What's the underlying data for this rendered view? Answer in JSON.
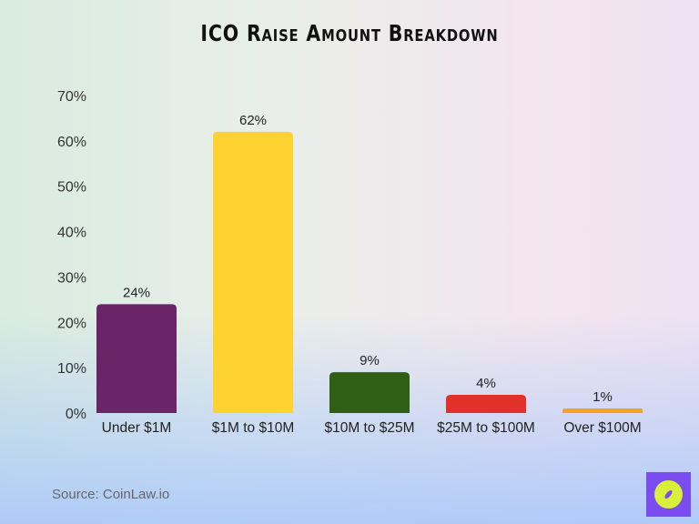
{
  "chart_data": {
    "type": "bar",
    "title": "ICO Raise Amount Breakdown",
    "categories": [
      "Under $1M",
      "$1M to $10M",
      "$10M to $25M",
      "$25M to $100M",
      "Over $100M"
    ],
    "values": [
      24,
      62,
      9,
      4,
      1
    ],
    "data_labels": [
      "24%",
      "62%",
      "9%",
      "4%",
      "1%"
    ],
    "colors": [
      "#6b2468",
      "#fdd231",
      "#2f5f12",
      "#e2302a",
      "#f4a321"
    ],
    "ylim": [
      0,
      70
    ],
    "yticks": [
      "0%",
      "10%",
      "20%",
      "30%",
      "40%",
      "50%",
      "60%",
      "70%"
    ],
    "grid": false,
    "xlabel": "",
    "ylabel": ""
  },
  "source": "Source: CoinLaw.io",
  "logo": "CoinLaw compass logo"
}
